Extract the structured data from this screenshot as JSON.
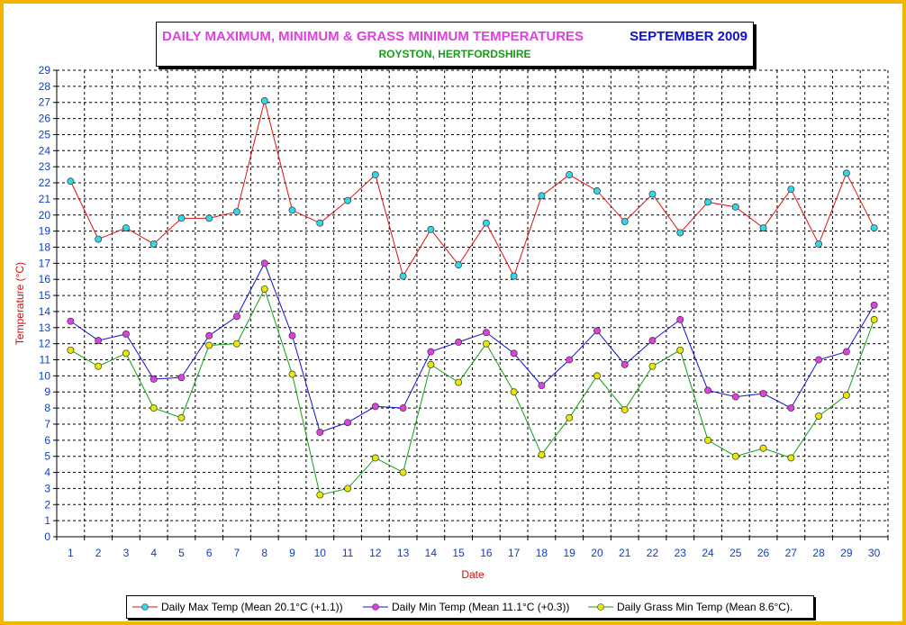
{
  "title": {
    "main": "DAILY MAXIMUM, MINIMUM & GRASS MINIMUM TEMPERATURES",
    "month": "SEPTEMBER 2009",
    "subtitle": "ROYSTON, HERTFORDSHIRE"
  },
  "colors": {
    "frame": "#f2b400",
    "title_main": "#e040e0",
    "title_month": "#1010d0",
    "subtitle": "#1a9a1a",
    "axis_label": "#d01010",
    "tick_label": "#1040c0"
  },
  "legend": [
    {
      "label": "Daily Max Temp (Mean 20.1°C (+1.1))",
      "line_color": "#e01010",
      "marker_color": "#30d8e8"
    },
    {
      "label": "Daily Min Temp (Mean 11.1°C (+0.3))",
      "line_color": "#1010d0",
      "marker_color": "#e040e0"
    },
    {
      "label": "Daily Grass Min Temp (Mean 8.6°C).",
      "line_color": "#10a010",
      "marker_color": "#e8e800"
    }
  ],
  "chart_data": {
    "type": "line",
    "title": "DAILY MAXIMUM, MINIMUM & GRASS MINIMUM TEMPERATURES",
    "subtitle": "ROYSTON, HERTFORDSHIRE",
    "xlabel": "Date",
    "ylabel": "Temperature (°C)",
    "ylim": [
      0,
      29
    ],
    "yticks": [
      0,
      1,
      2,
      3,
      4,
      5,
      6,
      7,
      8,
      9,
      10,
      11,
      12,
      13,
      14,
      15,
      16,
      17,
      18,
      19,
      20,
      21,
      22,
      23,
      24,
      25,
      26,
      27,
      28,
      29
    ],
    "grid": true,
    "legend_position": "bottom",
    "x": [
      1,
      2,
      3,
      4,
      5,
      6,
      7,
      8,
      9,
      10,
      11,
      12,
      13,
      14,
      15,
      16,
      17,
      18,
      19,
      20,
      21,
      22,
      23,
      24,
      25,
      26,
      27,
      28,
      29,
      30
    ],
    "series": [
      {
        "name": "Daily Max Temp (Mean 20.1°C (+1.1))",
        "line_color": "#e01010",
        "marker_color": "#30d8e8",
        "values": [
          22.1,
          18.5,
          19.2,
          18.2,
          19.8,
          19.8,
          20.2,
          27.1,
          20.3,
          19.5,
          20.9,
          22.5,
          16.2,
          19.1,
          16.9,
          19.5,
          16.2,
          21.2,
          22.5,
          21.5,
          19.6,
          21.3,
          18.9,
          20.8,
          20.5,
          19.2,
          21.6,
          18.2,
          22.6,
          19.2
        ]
      },
      {
        "name": "Daily Min Temp (Mean 11.1°C (+0.3))",
        "line_color": "#1010d0",
        "marker_color": "#e040e0",
        "values": [
          13.4,
          12.2,
          12.6,
          9.8,
          9.9,
          12.5,
          13.7,
          17.0,
          12.5,
          6.5,
          7.1,
          8.1,
          8.0,
          11.5,
          12.1,
          12.7,
          11.4,
          9.4,
          11.0,
          12.8,
          10.7,
          12.2,
          13.5,
          9.1,
          8.7,
          8.9,
          8.0,
          11.0,
          11.5,
          14.4
        ]
      },
      {
        "name": "Daily Grass Min Temp (Mean 8.6°C).",
        "line_color": "#10a010",
        "marker_color": "#e8e800",
        "values": [
          11.6,
          10.6,
          11.4,
          8.0,
          7.4,
          11.9,
          12.0,
          15.4,
          10.1,
          2.6,
          3.0,
          4.9,
          4.0,
          10.7,
          9.6,
          12.0,
          9.0,
          5.1,
          7.4,
          10.0,
          7.9,
          10.6,
          11.6,
          6.0,
          5.0,
          5.5,
          4.9,
          7.5,
          8.8,
          13.5
        ]
      }
    ]
  }
}
